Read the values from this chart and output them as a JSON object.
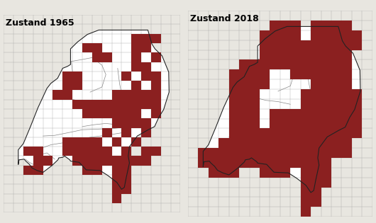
{
  "title_left": "Zustand 1965",
  "title_right": "Zustand 2018",
  "title_fontsize": 9,
  "title_fontweight": "bold",
  "bg_color": "#e8e6e0",
  "map_bg": "#ffffff",
  "cell_color": "#8b2020",
  "border_color": "#222222",
  "grid_color": "#555555",
  "figsize": [
    5.3,
    3.15
  ],
  "dpi": 100
}
